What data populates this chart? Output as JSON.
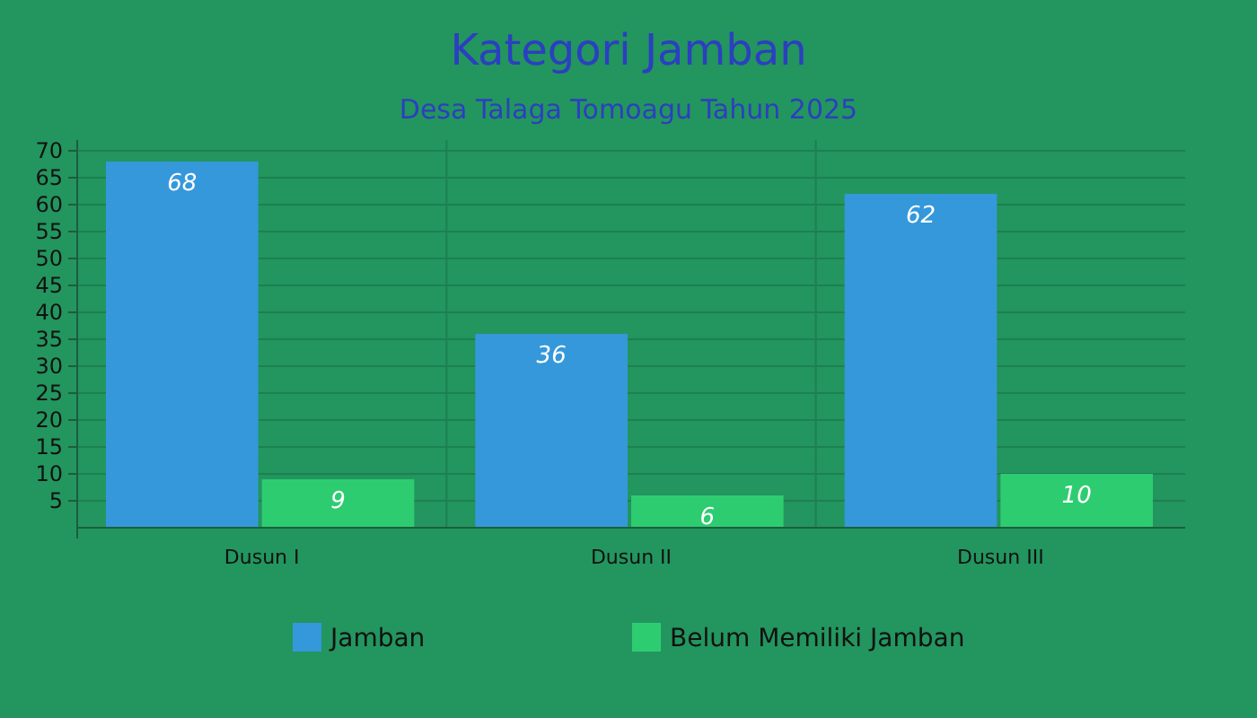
{
  "chart_data": {
    "type": "bar",
    "title": "Kategori Jamban",
    "subtitle": "Desa Talaga Tomoagu Tahun 2025",
    "categories": [
      "Dusun I",
      "Dusun II",
      "Dusun III"
    ],
    "series": [
      {
        "name": "Jamban",
        "color": "#3498db",
        "values": [
          68,
          36,
          62
        ]
      },
      {
        "name": "Belum Memiliki Jamban",
        "color": "#2ecc71",
        "values": [
          9,
          6,
          10
        ]
      }
    ],
    "ylim": [
      0,
      72
    ],
    "yticks": [
      5,
      10,
      15,
      20,
      25,
      30,
      35,
      40,
      45,
      50,
      55,
      60,
      65,
      70
    ],
    "grid": true,
    "legend": "bottom",
    "data_labels": true
  }
}
